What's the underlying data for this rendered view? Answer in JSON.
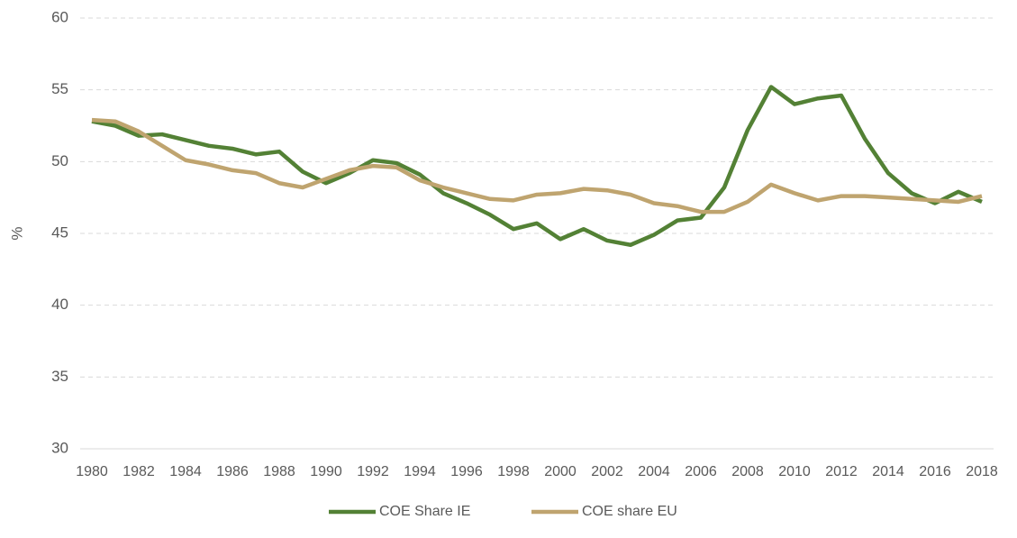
{
  "chart_data": {
    "type": "line",
    "y_label": "%",
    "categories": [
      "1980",
      null,
      "1982",
      null,
      "1984",
      null,
      "1986",
      null,
      "1988",
      null,
      "1990",
      null,
      "1992",
      null,
      "1994",
      null,
      "1996",
      null,
      "1998",
      null,
      "2000",
      null,
      "2002",
      null,
      "2004",
      null,
      "2006",
      null,
      "2008",
      null,
      "2010",
      null,
      "2012",
      null,
      "2014",
      null,
      "2016",
      null,
      "2018"
    ],
    "series": [
      {
        "name": "COE Share IE",
        "color": "#538135",
        "values": [
          52.8,
          52.5,
          51.8,
          51.9,
          51.5,
          51.1,
          50.9,
          50.5,
          50.7,
          49.3,
          48.5,
          49.2,
          50.1,
          49.9,
          49.1,
          47.8,
          47.1,
          46.3,
          45.3,
          45.7,
          44.6,
          45.3,
          44.5,
          44.2,
          44.9,
          45.9,
          46.1,
          48.2,
          52.2,
          55.2,
          54.0,
          54.4,
          54.6,
          51.6,
          49.2,
          47.8,
          47.1,
          47.9,
          47.2
        ]
      },
      {
        "name": "COE share EU",
        "color": "#bfa46f",
        "values": [
          52.9,
          52.8,
          52.1,
          51.1,
          50.1,
          49.8,
          49.4,
          49.2,
          48.5,
          48.2,
          48.8,
          49.4,
          49.7,
          49.6,
          48.7,
          48.2,
          47.8,
          47.4,
          47.3,
          47.7,
          47.8,
          48.1,
          48.0,
          47.7,
          47.1,
          46.9,
          46.5,
          46.5,
          47.2,
          48.4,
          47.8,
          47.3,
          47.6,
          47.6,
          47.5,
          47.4,
          47.3,
          47.2,
          47.6
        ]
      }
    ],
    "ylim": [
      30,
      60
    ],
    "yticks": [
      30,
      35,
      40,
      45,
      50,
      55,
      60
    ],
    "grid": true,
    "legend": "bottom"
  }
}
